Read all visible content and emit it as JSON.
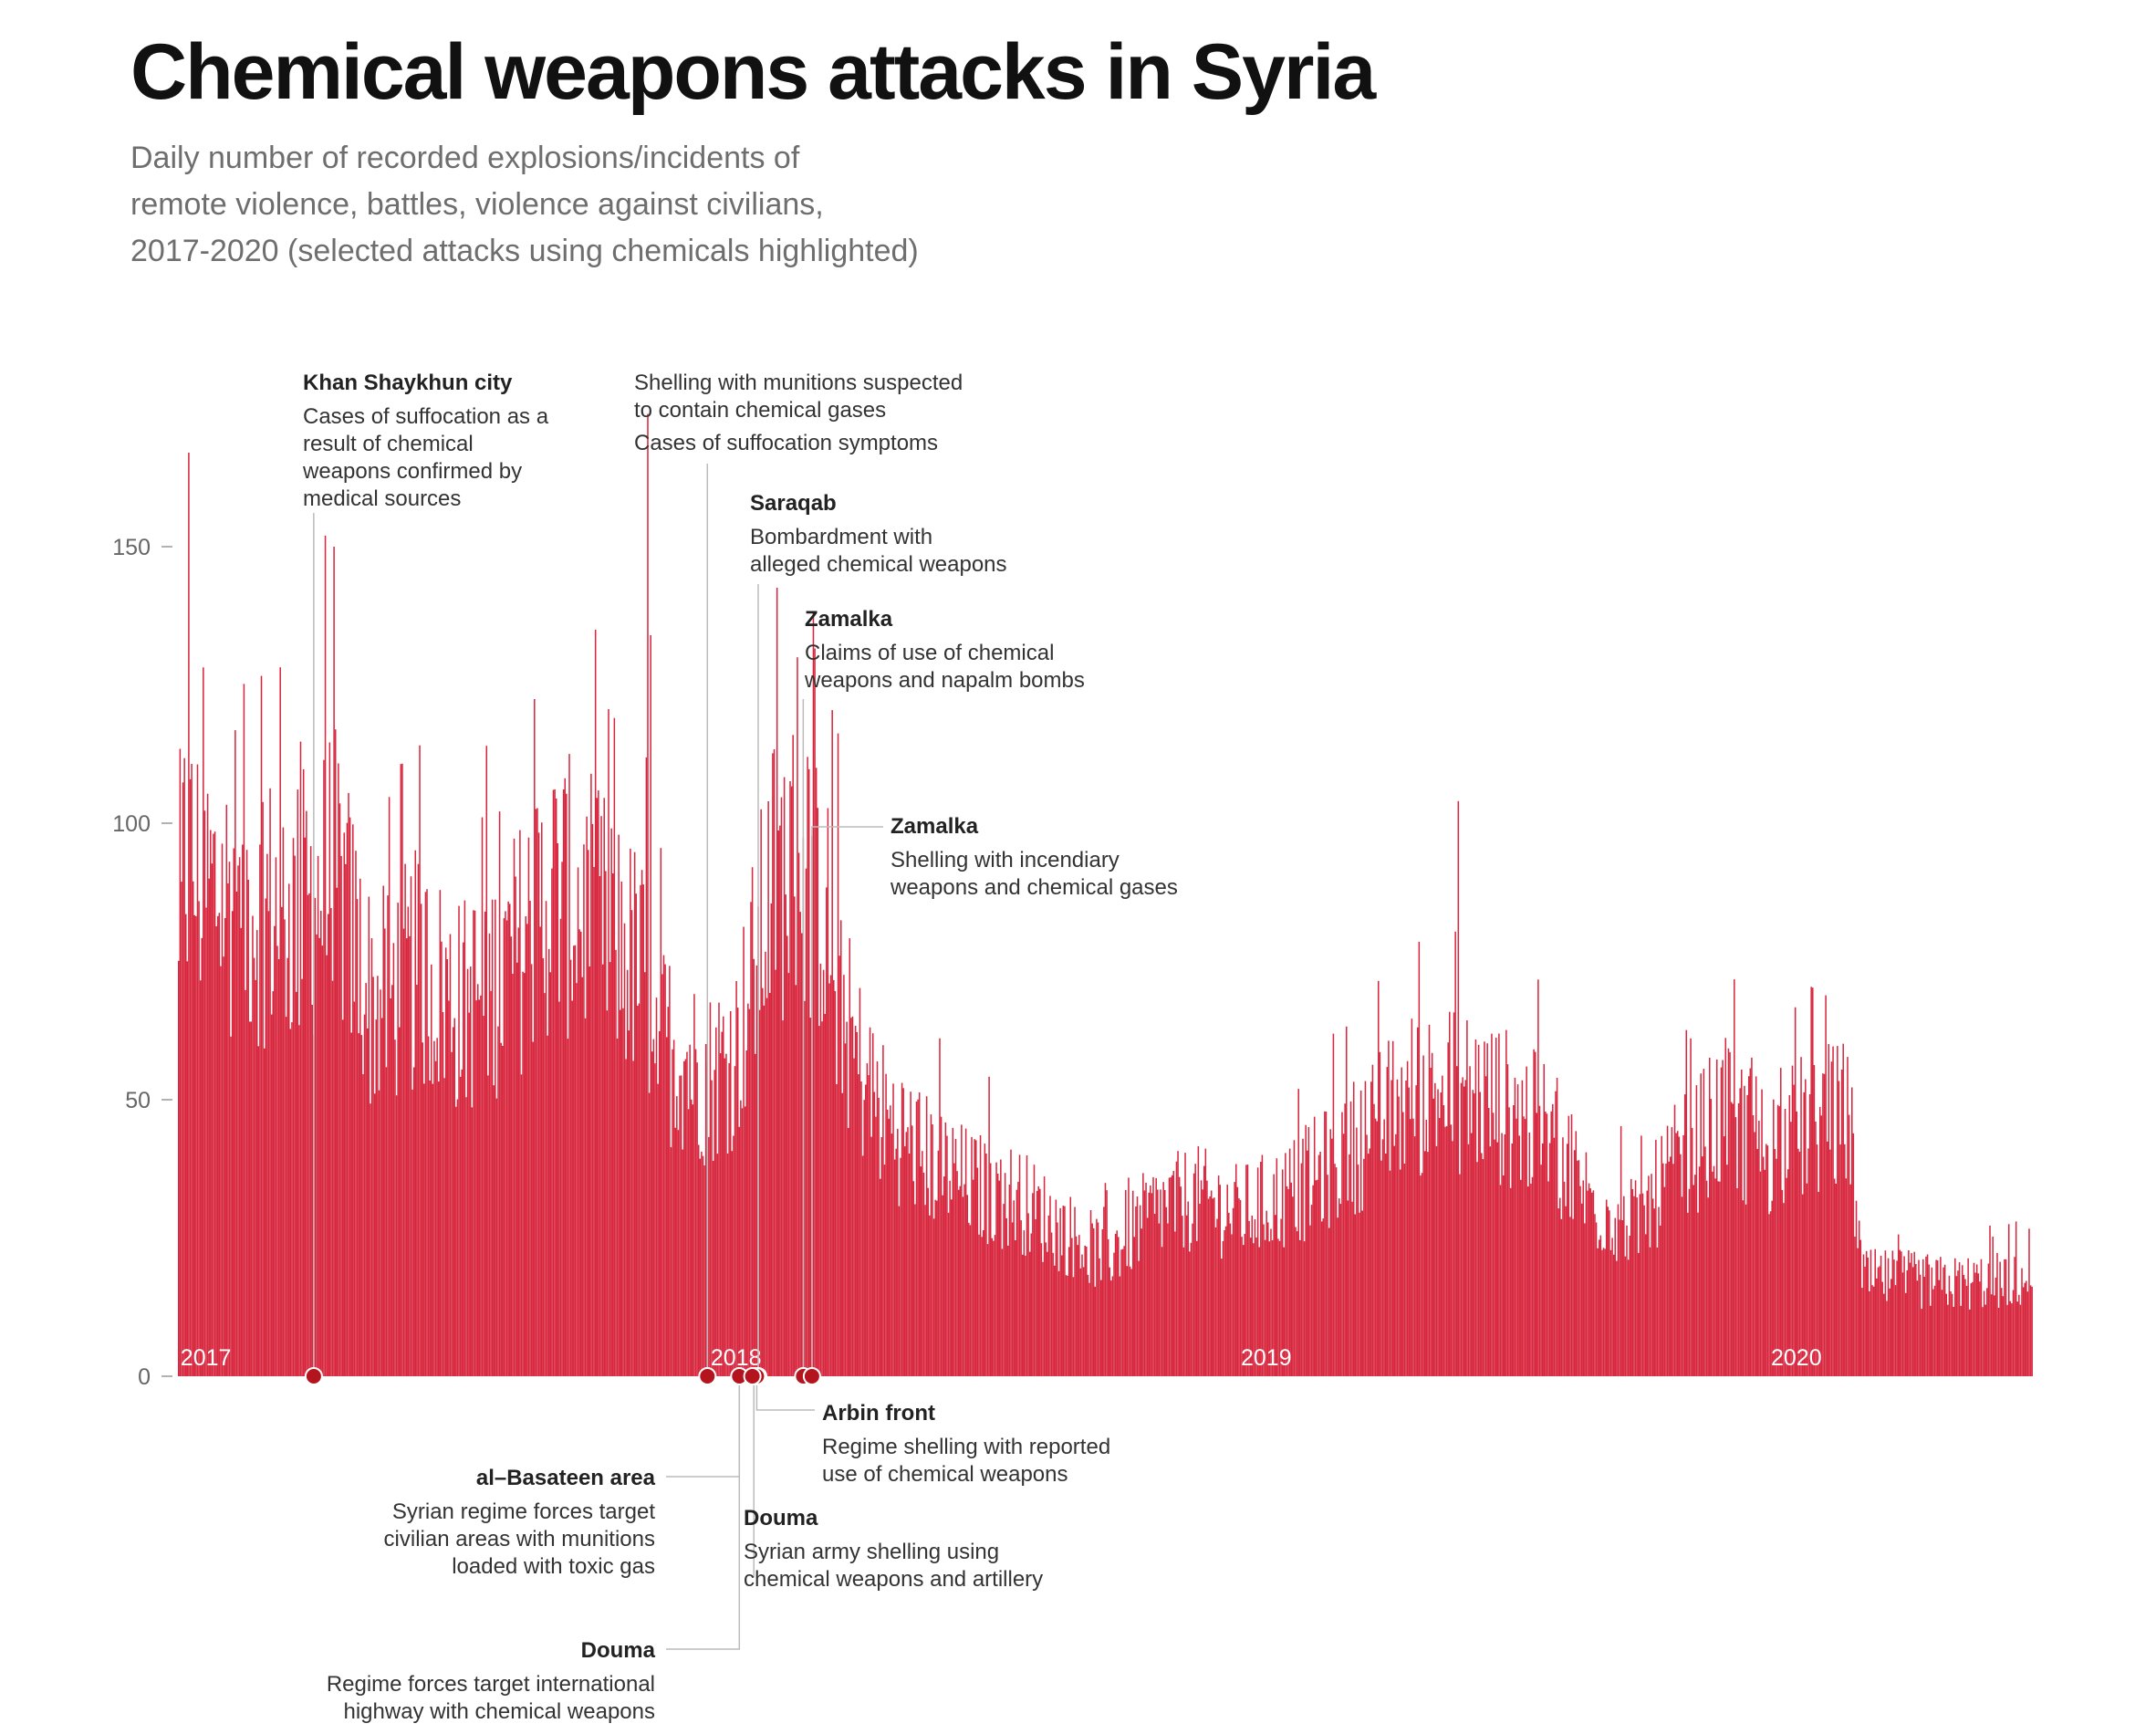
{
  "header": {
    "title": "Chemical weapons attacks in Syria",
    "subtitle_lines": [
      "Daily number of recorded explosions/incidents of",
      "remote violence, battles, violence against civilians,",
      "2017-2020 (selected attacks using chemicals highlighted)"
    ]
  },
  "colors": {
    "bars": "#d7263d",
    "marker": "#b3141d",
    "leader": "#bbbbbb",
    "axis_text": "#666666"
  },
  "chart_data": {
    "type": "bar",
    "title": "Chemical weapons attacks in Syria",
    "xlabel": "",
    "ylabel": "",
    "x_range": [
      "2017-01-01",
      "2020-06-30"
    ],
    "ylim": [
      0,
      175
    ],
    "y_ticks": [
      0,
      50,
      100,
      150
    ],
    "grid": false,
    "year_labels": [
      {
        "label": "2017",
        "date": "2017-01-01"
      },
      {
        "label": "2018",
        "date": "2018-01-01"
      },
      {
        "label": "2019",
        "date": "2019-01-01"
      },
      {
        "label": "2020",
        "date": "2020-01-01"
      }
    ],
    "series_profile": [
      [
        "2017-01-01",
        70
      ],
      [
        "2017-01-05",
        95
      ],
      [
        "2017-01-20",
        90
      ],
      [
        "2017-02-15",
        88
      ],
      [
        "2017-03-20",
        85
      ],
      [
        "2017-04-20",
        92
      ],
      [
        "2017-05-15",
        68
      ],
      [
        "2017-06-15",
        75
      ],
      [
        "2017-07-15",
        68
      ],
      [
        "2017-08-15",
        75
      ],
      [
        "2017-09-15",
        90
      ],
      [
        "2017-10-15",
        85
      ],
      [
        "2017-11-15",
        75
      ],
      [
        "2017-12-01",
        62
      ],
      [
        "2017-12-31",
        55
      ],
      [
        "2018-01-20",
        60
      ],
      [
        "2018-02-15",
        92
      ],
      [
        "2018-03-05",
        95
      ],
      [
        "2018-03-20",
        88
      ],
      [
        "2018-04-10",
        60
      ],
      [
        "2018-05-01",
        48
      ],
      [
        "2018-06-01",
        40
      ],
      [
        "2018-07-01",
        35
      ],
      [
        "2018-08-01",
        33
      ],
      [
        "2018-09-01",
        27
      ],
      [
        "2018-10-01",
        22
      ],
      [
        "2018-11-01",
        30
      ],
      [
        "2018-12-01",
        33
      ],
      [
        "2019-01-01",
        30
      ],
      [
        "2019-02-01",
        33
      ],
      [
        "2019-03-01",
        38
      ],
      [
        "2019-04-01",
        45
      ],
      [
        "2019-05-01",
        52
      ],
      [
        "2019-06-01",
        53
      ],
      [
        "2019-07-01",
        50
      ],
      [
        "2019-08-01",
        45
      ],
      [
        "2019-09-01",
        32
      ],
      [
        "2019-10-01",
        28
      ],
      [
        "2019-11-01",
        40
      ],
      [
        "2019-12-01",
        48
      ],
      [
        "2020-01-01",
        42
      ],
      [
        "2020-02-01",
        47
      ],
      [
        "2020-02-25",
        48
      ],
      [
        "2020-03-05",
        18
      ],
      [
        "2020-04-01",
        18
      ],
      [
        "2020-05-01",
        17
      ],
      [
        "2020-06-30",
        18
      ]
    ],
    "peaks": [
      {
        "date": "2017-01-08",
        "value": 167
      },
      {
        "date": "2017-04-12",
        "value": 152
      },
      {
        "date": "2017-04-18",
        "value": 150
      },
      {
        "date": "2017-11-20",
        "value": 174
      },
      {
        "date": "2017-11-22",
        "value": 134
      },
      {
        "date": "2018-03-03",
        "value": 130
      },
      {
        "date": "2019-06-01",
        "value": 104
      }
    ]
  },
  "annotations": [
    {
      "id": "khan-shaykhun",
      "date": "2017-04-04",
      "side": "above",
      "title": "Khan Shaykhun city",
      "lines": [
        "Cases of suffocation as a",
        "result of chemical",
        "weapons confirmed by",
        "medical sources"
      ]
    },
    {
      "id": "shelling-suspected",
      "date": "2017-12-31",
      "side": "above",
      "title": "",
      "lines": [
        "Shelling with munitions suspected",
        "to contain chemical gases",
        "Cases of suffocation symptoms"
      ]
    },
    {
      "id": "saraqab",
      "date": "2018-02-04",
      "side": "above",
      "title": "Saraqab",
      "lines": [
        "Bombardment with",
        "alleged chemical weapons"
      ]
    },
    {
      "id": "zamalka-1",
      "date": "2018-03-07",
      "side": "above",
      "title": "Zamalka",
      "lines": [
        "Claims of use of chemical",
        "weapons and napalm bombs"
      ]
    },
    {
      "id": "zamalka-2",
      "date": "2018-03-13",
      "side": "above",
      "title": "Zamalka",
      "lines": [
        "Shelling with incendiary",
        "weapons and chemical gases"
      ]
    },
    {
      "id": "al-basateen",
      "date": "2018-01-22",
      "side": "below",
      "title": "al–Basateen area",
      "lines": [
        "Syrian regime forces target",
        "civilian areas with munitions",
        "loaded with toxic gas"
      ]
    },
    {
      "id": "douma-1",
      "date": "2018-01-22",
      "side": "below",
      "title": "Douma",
      "lines": [
        "Regime forces target international",
        "highway with chemical weapons"
      ]
    },
    {
      "id": "douma-2",
      "date": "2018-02-01",
      "side": "below",
      "title": "Douma",
      "lines": [
        "Syrian army shelling using",
        "chemical weapons and artillery"
      ]
    },
    {
      "id": "arbin-front",
      "date": "2018-02-03",
      "side": "below",
      "title": "Arbin front",
      "lines": [
        "Regime shelling with reported",
        "use of chemical weapons"
      ]
    }
  ],
  "extra_markers": [
    {
      "date": "2018-01-31"
    },
    {
      "date": "2018-03-07"
    },
    {
      "date": "2018-03-13"
    }
  ]
}
